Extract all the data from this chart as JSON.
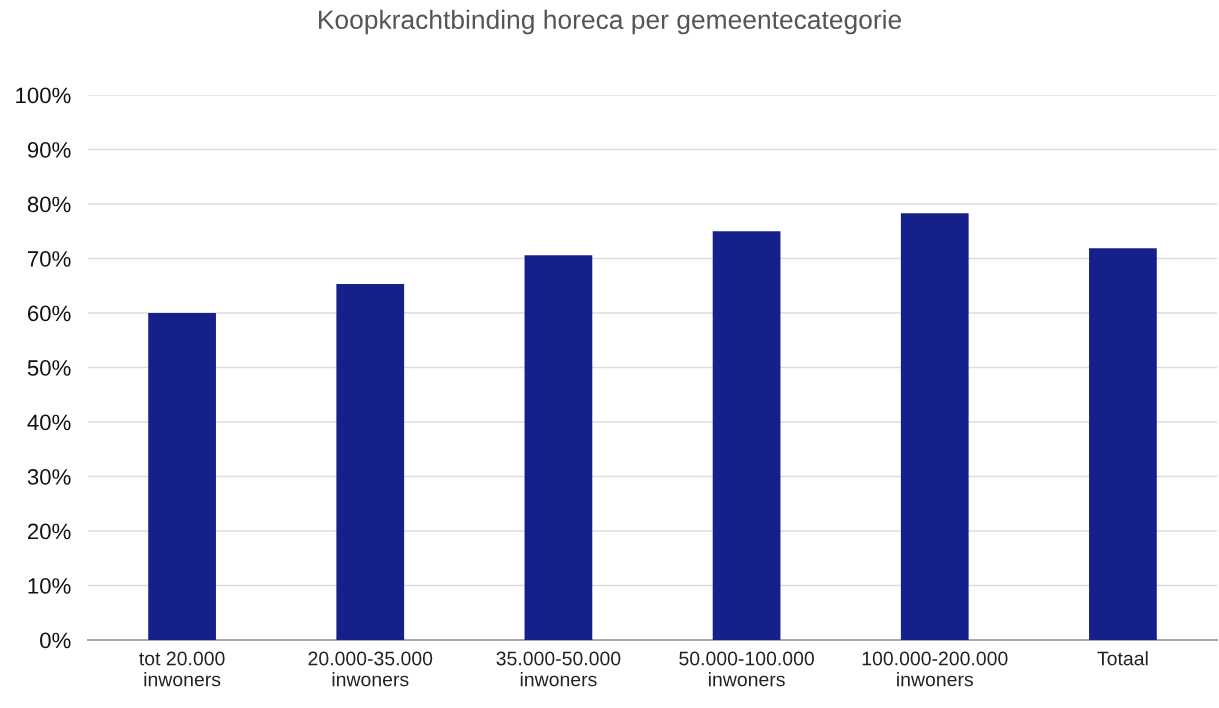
{
  "chart_data": {
    "type": "bar",
    "title": "Koopkrachtbinding horeca per gemeentecategorie",
    "categories": [
      "tot 20.000\ninwoners",
      "20.000-35.000\ninwoners",
      "35.000-50.000\ninwoners",
      "50.000-100.000\ninwoners",
      "100.000-200.000\ninwoners",
      "Totaal"
    ],
    "values": [
      60,
      65.3,
      70.6,
      75,
      78.3,
      71.9
    ],
    "color": "#16208b",
    "ylim": [
      0,
      100
    ],
    "yticks": [
      {
        "value": 0,
        "label": "0%"
      },
      {
        "value": 10,
        "label": "10%"
      },
      {
        "value": 20,
        "label": "20%"
      },
      {
        "value": 30,
        "label": "30%"
      },
      {
        "value": 40,
        "label": "40%"
      },
      {
        "value": 50,
        "label": "50%"
      },
      {
        "value": 60,
        "label": "60%"
      },
      {
        "value": 70,
        "label": "70%"
      },
      {
        "value": 80,
        "label": "80%"
      },
      {
        "value": 90,
        "label": "90%"
      },
      {
        "value": 100,
        "label": "100%"
      }
    ],
    "grid": "y",
    "legend": false
  }
}
